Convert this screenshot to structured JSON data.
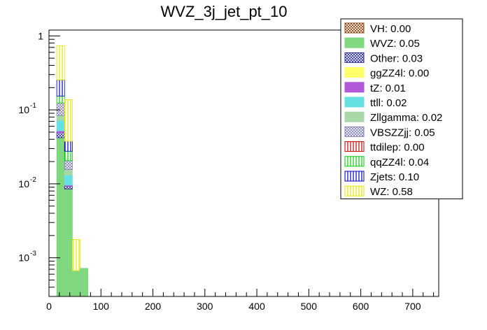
{
  "chart_data": {
    "type": "bar",
    "title": "WVZ_3j_jet_pt_10",
    "xlabel": "",
    "ylabel": "",
    "xlim": [
      0,
      750
    ],
    "ylim": [
      0.0003,
      1.2
    ],
    "log_y": true,
    "grid": false,
    "stacked": true,
    "legend_position": "top-right",
    "x_ticks": [
      0,
      100,
      200,
      300,
      400,
      500,
      600,
      700
    ],
    "x_tick_labels": [
      "0",
      "100",
      "200",
      "300",
      "400",
      "500",
      "600",
      "700"
    ],
    "y_ticks": [
      0.001,
      0.01,
      0.1,
      1
    ],
    "y_tick_labels": [
      "10^{-3}",
      "10^{-2}",
      "10^{-1}",
      "1"
    ],
    "bin_edges": [
      15,
      30,
      45,
      60,
      75
    ],
    "series": [
      {
        "name": "VH: 0.00",
        "color": "#8b4513",
        "hatch": "cross",
        "values": [
          0,
          0,
          0,
          0
        ]
      },
      {
        "name": "WVZ: 0.05",
        "color": "#7fd87f",
        "hatch": "solid",
        "values": [
          0.042,
          0.0085,
          0.00067,
          0.00072
        ]
      },
      {
        "name": "Other: 0.03",
        "color": "#2e2e8f",
        "hatch": "cross",
        "values": [
          0.0075,
          0.0008,
          0,
          0
        ]
      },
      {
        "name": "ggZZ4l: 0.00",
        "color": "#ffff66",
        "hatch": "solid",
        "values": [
          0,
          0,
          0,
          0
        ]
      },
      {
        "name": "tZ: 0.01",
        "color": "#b05ad8",
        "hatch": "solid",
        "values": [
          0.0025,
          0.0003,
          0,
          0
        ]
      },
      {
        "name": "ttll: 0.02",
        "color": "#66e0e0",
        "hatch": "solid",
        "values": [
          0.02,
          0.0035,
          0,
          0
        ]
      },
      {
        "name": "Zllgamma: 0.02",
        "color": "#a8d8a8",
        "hatch": "solid",
        "values": [
          0.012,
          0.0025,
          0,
          0
        ]
      },
      {
        "name": "VBSZZjj: 0.05",
        "color": "#8080b0",
        "hatch": "cross",
        "values": [
          0.04,
          0.005,
          0,
          0
        ]
      },
      {
        "name": "ttdilep: 0.00",
        "color": "#cc0000",
        "hatch": "vertical",
        "values": [
          0,
          0,
          0,
          0
        ]
      },
      {
        "name": "qqZZ4l: 0.04",
        "color": "#00cc00",
        "hatch": "vertical",
        "values": [
          0.03,
          0.007,
          0,
          0
        ]
      },
      {
        "name": "Zjets: 0.10",
        "color": "#0000cc",
        "hatch": "vertical",
        "values": [
          0.1,
          0.01,
          0,
          0
        ]
      },
      {
        "name": "WZ: 0.58",
        "color": "#e6e600",
        "hatch": "vertical",
        "values": [
          0.48,
          0.1,
          0.0011,
          0
        ]
      }
    ]
  }
}
